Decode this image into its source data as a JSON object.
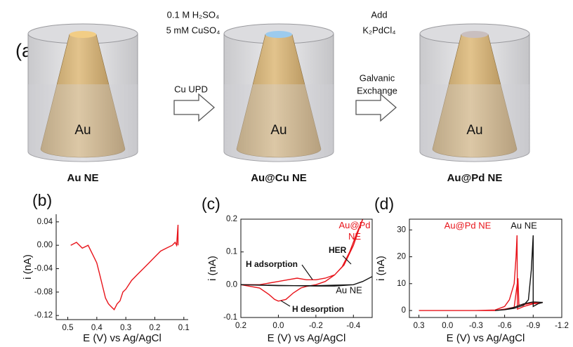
{
  "schematic": {
    "label": "(a)",
    "electrolyte": [
      "0.1 M H₂SO₄",
      "5 mM CuSO₄"
    ],
    "step1": "Cu UPD",
    "reagent": [
      "Add",
      "K₂PdCl₄"
    ],
    "step2": [
      "Galvanic",
      "Exchange"
    ],
    "electrodes": [
      {
        "core": "Au",
        "name": "Au NE",
        "tip_color": "#f2cd85"
      },
      {
        "core": "Au",
        "name": "Au@Cu NE",
        "tip_color": "#9ccbee"
      },
      {
        "core": "Au",
        "name": "Au@Pd NE",
        "tip_color": "#c9bfbf"
      }
    ]
  },
  "chart_data": [
    {
      "type": "line",
      "panel_label": "(b)",
      "xlabel": "E (V) vs Ag/AgCl",
      "ylabel": "i (nA)",
      "xlim": [
        0.54,
        0.085
      ],
      "ylim": [
        -0.127,
        0.053
      ],
      "xticks": [
        0.5,
        0.4,
        0.3,
        0.2,
        0.1
      ],
      "yticks": [
        0.04,
        {
          "value": 0,
          "label": "0.00"
        },
        -0.04,
        -0.08,
        -0.12
      ],
      "series": [
        {
          "color": "#e8141b",
          "x": [
            0.49,
            0.47,
            0.45,
            0.43,
            0.41,
            0.4,
            0.39,
            0.38,
            0.37,
            0.36,
            0.35,
            0.34,
            0.33,
            0.32,
            0.31,
            0.3,
            0.28,
            0.26,
            0.24,
            0.22,
            0.2,
            0.18,
            0.16,
            0.14,
            0.13,
            0.125,
            0.12,
            0.12
          ],
          "values": [
            0.0,
            0.005,
            -0.005,
            0.0,
            -0.02,
            -0.03,
            -0.05,
            -0.07,
            -0.09,
            -0.1,
            -0.105,
            -0.11,
            -0.1,
            -0.095,
            -0.08,
            -0.075,
            -0.06,
            -0.05,
            -0.04,
            -0.03,
            -0.02,
            -0.01,
            -0.005,
            0.0,
            0.005,
            0.0,
            0.035,
            0.0
          ]
        }
      ],
      "annotations": []
    },
    {
      "type": "line",
      "panel_label": "(c)",
      "xlabel": "E (V) vs Ag/AgCl",
      "ylabel": "i (nA)",
      "xlim": [
        0.2,
        -0.5
      ],
      "ylim": [
        -0.1,
        0.2
      ],
      "xticks": [
        0.2,
        {
          "value": 0,
          "label": "0.0"
        },
        -0.2,
        -0.4
      ],
      "yticks": [
        -0.1,
        {
          "value": 0,
          "label": "0.0"
        },
        0.1,
        0.2
      ],
      "series": [
        {
          "name": "Au@Pd NE",
          "color": "#e8141b",
          "x": [
            0.2,
            0.1,
            0.05,
            0.0,
            -0.05,
            -0.1,
            -0.15,
            -0.2,
            -0.25,
            -0.3,
            -0.35,
            -0.4,
            -0.43,
            -0.45,
            -0.42,
            -0.38,
            -0.34,
            -0.3,
            -0.25,
            -0.2,
            -0.15,
            -0.12,
            -0.08,
            -0.04,
            0.0,
            0.02,
            0.05,
            0.1,
            0.15,
            0.2
          ],
          "values": [
            0.0,
            0.0,
            0.005,
            0.01,
            0.015,
            0.02,
            0.015,
            0.015,
            0.02,
            0.03,
            0.06,
            0.12,
            0.17,
            0.2,
            0.16,
            0.1,
            0.055,
            0.03,
            0.01,
            0.0,
            -0.005,
            -0.01,
            -0.025,
            -0.045,
            -0.05,
            -0.045,
            -0.03,
            -0.01,
            -0.005,
            0.0
          ]
        },
        {
          "name": "Au NE",
          "color": "#111111",
          "x": [
            0.2,
            0.0,
            -0.2,
            -0.3,
            -0.4,
            -0.45,
            -0.5,
            -0.45,
            -0.4,
            -0.2,
            0.0,
            0.2
          ],
          "values": [
            0,
            -0.002,
            -0.004,
            -0.004,
            0.0,
            0.01,
            0.025,
            0.01,
            0.0,
            -0.003,
            -0.003,
            0.0
          ]
        }
      ],
      "annotations": [
        "H adsorption",
        "H desorption",
        "HER"
      ]
    },
    {
      "type": "line",
      "panel_label": "(d)",
      "xlabel": "E (V) vs Ag/AgCl",
      "ylabel": "i (nA)",
      "xlim": [
        0.4,
        -1.2
      ],
      "ylim": [
        -2.6,
        34
      ],
      "xticks": [
        0.3,
        {
          "value": 0,
          "label": "0.0"
        },
        -0.3,
        -0.6,
        -0.9,
        -1.2
      ],
      "yticks": [
        0,
        10,
        20,
        30
      ],
      "series": [
        {
          "name": "Au@Pd NE",
          "color": "#e8141b",
          "x": [
            0.3,
            0.0,
            -0.3,
            -0.5,
            -0.6,
            -0.65,
            -0.7,
            -0.72,
            -0.73,
            -0.735,
            -0.8,
            -0.9,
            -1.0,
            -0.9,
            -0.8,
            -0.75,
            -0.74,
            -0.7,
            -0.6,
            -0.5,
            0.0,
            0.3
          ],
          "values": [
            0,
            0,
            0,
            0.2,
            1.5,
            4,
            10,
            20,
            28,
            0.5,
            1.5,
            2.5,
            3,
            2.8,
            2.2,
            2,
            12,
            1.2,
            0.5,
            0,
            0,
            0
          ]
        },
        {
          "name": "Au NE",
          "color": "#111111",
          "x": [
            -0.5,
            -0.6,
            -0.7,
            -0.8,
            -0.85,
            -0.88,
            -0.9,
            -0.9,
            -0.95,
            -1.0,
            -0.9,
            -0.8,
            -0.7,
            -0.6
          ],
          "values": [
            0,
            0.3,
            0.8,
            2,
            4,
            15,
            28,
            1.5,
            2.5,
            3,
            3.2,
            2.5,
            1.2,
            0.3
          ]
        }
      ],
      "annotations": []
    }
  ]
}
